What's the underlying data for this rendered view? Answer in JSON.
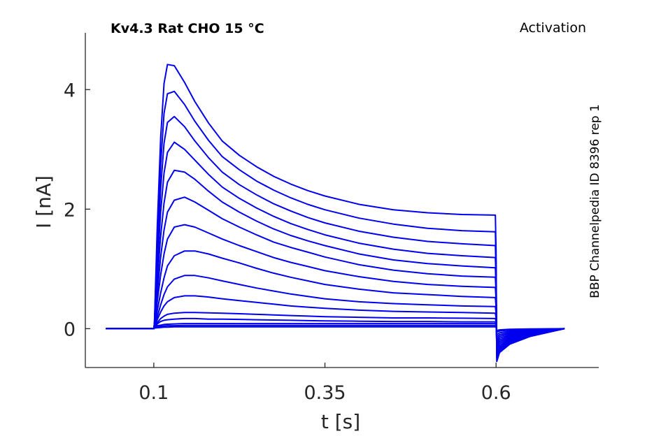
{
  "chart_data": {
    "type": "line",
    "title": "Kv4.3  Rat  CHO  15 °C",
    "right_title": "Activation",
    "side_label": "BBP Channelpedia ID 8396 rep 1",
    "xlabel": "t [s]",
    "ylabel": "I [nA]",
    "xlim": [
      0.0,
      0.75
    ],
    "ylim": [
      -0.65,
      4.95
    ],
    "xticks": [
      0.1,
      0.35,
      0.6
    ],
    "xtick_labels": [
      "0.1",
      "0.35",
      "0.6"
    ],
    "yticks": [
      0,
      2,
      4
    ],
    "ytick_labels": [
      "0",
      "2",
      "4"
    ],
    "grid": false,
    "line_color": "#0000ee",
    "x": [
      0.03,
      0.1,
      0.101,
      0.105,
      0.11,
      0.115,
      0.12,
      0.13,
      0.145,
      0.16,
      0.18,
      0.2,
      0.225,
      0.25,
      0.275,
      0.3,
      0.325,
      0.35,
      0.4,
      0.45,
      0.5,
      0.55,
      0.599,
      0.6,
      0.601,
      0.605,
      0.62,
      0.65,
      0.7
    ],
    "series": [
      {
        "values": [
          0.0,
          0.0,
          0.01,
          0.015,
          0.02,
          0.025,
          0.025,
          0.03,
          0.03,
          0.03,
          0.03,
          0.03,
          0.03,
          0.03,
          0.03,
          0.03,
          0.03,
          0.03,
          0.03,
          0.03,
          0.03,
          0.03,
          0.03,
          0.02,
          -0.03,
          -0.02,
          -0.01,
          -0.005,
          0.0
        ]
      },
      {
        "values": [
          0.0,
          0.0,
          0.02,
          0.03,
          0.04,
          0.045,
          0.05,
          0.05,
          0.055,
          0.055,
          0.055,
          0.055,
          0.055,
          0.055,
          0.055,
          0.055,
          0.055,
          0.055,
          0.055,
          0.055,
          0.055,
          0.055,
          0.055,
          0.04,
          -0.06,
          -0.04,
          -0.02,
          -0.01,
          0.0
        ]
      },
      {
        "values": [
          0.0,
          0.0,
          0.03,
          0.05,
          0.06,
          0.07,
          0.075,
          0.08,
          0.085,
          0.085,
          0.085,
          0.085,
          0.085,
          0.085,
          0.085,
          0.085,
          0.085,
          0.085,
          0.085,
          0.085,
          0.085,
          0.085,
          0.085,
          0.06,
          -0.1,
          -0.07,
          -0.04,
          -0.02,
          0.0
        ]
      },
      {
        "values": [
          0.0,
          0.0,
          0.03,
          0.08,
          0.12,
          0.14,
          0.15,
          0.16,
          0.17,
          0.17,
          0.16,
          0.16,
          0.155,
          0.15,
          0.145,
          0.14,
          0.135,
          0.13,
          0.125,
          0.12,
          0.12,
          0.115,
          0.115,
          0.08,
          -0.14,
          -0.1,
          -0.06,
          -0.03,
          0.0
        ]
      },
      {
        "values": [
          0.0,
          0.0,
          0.03,
          0.1,
          0.17,
          0.21,
          0.24,
          0.26,
          0.27,
          0.27,
          0.265,
          0.26,
          0.25,
          0.24,
          0.23,
          0.22,
          0.21,
          0.2,
          0.19,
          0.18,
          0.18,
          0.175,
          0.17,
          0.12,
          -0.18,
          -0.13,
          -0.08,
          -0.04,
          0.0
        ]
      },
      {
        "values": [
          0.0,
          0.0,
          0.03,
          0.15,
          0.28,
          0.38,
          0.45,
          0.52,
          0.55,
          0.55,
          0.53,
          0.5,
          0.47,
          0.44,
          0.41,
          0.38,
          0.36,
          0.34,
          0.31,
          0.29,
          0.28,
          0.27,
          0.26,
          0.18,
          -0.22,
          -0.16,
          -0.1,
          -0.05,
          0.0
        ]
      },
      {
        "values": [
          0.0,
          0.0,
          0.03,
          0.2,
          0.4,
          0.57,
          0.7,
          0.83,
          0.89,
          0.89,
          0.85,
          0.8,
          0.74,
          0.68,
          0.63,
          0.58,
          0.54,
          0.5,
          0.45,
          0.42,
          0.4,
          0.38,
          0.37,
          0.26,
          -0.26,
          -0.19,
          -0.12,
          -0.06,
          0.0
        ]
      },
      {
        "values": [
          0.0,
          0.0,
          0.04,
          0.3,
          0.6,
          0.85,
          1.05,
          1.22,
          1.3,
          1.3,
          1.25,
          1.18,
          1.1,
          1.01,
          0.93,
          0.86,
          0.8,
          0.74,
          0.66,
          0.6,
          0.57,
          0.54,
          0.52,
          0.36,
          -0.3,
          -0.22,
          -0.14,
          -0.07,
          0.0
        ]
      },
      {
        "values": [
          0.0,
          0.0,
          0.05,
          0.45,
          0.9,
          1.25,
          1.5,
          1.7,
          1.74,
          1.7,
          1.6,
          1.5,
          1.39,
          1.29,
          1.19,
          1.11,
          1.04,
          0.97,
          0.87,
          0.79,
          0.74,
          0.71,
          0.69,
          0.48,
          -0.34,
          -0.25,
          -0.16,
          -0.08,
          0.0
        ]
      },
      {
        "values": [
          0.0,
          0.0,
          0.06,
          0.6,
          1.2,
          1.65,
          1.95,
          2.15,
          2.2,
          2.12,
          1.98,
          1.84,
          1.7,
          1.57,
          1.45,
          1.36,
          1.28,
          1.2,
          1.07,
          0.98,
          0.92,
          0.88,
          0.86,
          0.6,
          -0.38,
          -0.28,
          -0.18,
          -0.09,
          0.0
        ]
      },
      {
        "values": [
          0.0,
          0.0,
          0.07,
          0.8,
          1.55,
          2.1,
          2.45,
          2.65,
          2.62,
          2.5,
          2.3,
          2.12,
          1.95,
          1.8,
          1.67,
          1.56,
          1.47,
          1.39,
          1.25,
          1.15,
          1.09,
          1.05,
          1.02,
          0.72,
          -0.42,
          -0.31,
          -0.2,
          -0.1,
          0.0
        ]
      },
      {
        "values": [
          0.0,
          0.0,
          0.08,
          1.0,
          1.95,
          2.6,
          2.95,
          3.12,
          3.0,
          2.82,
          2.58,
          2.37,
          2.18,
          2.02,
          1.88,
          1.76,
          1.66,
          1.57,
          1.43,
          1.33,
          1.26,
          1.22,
          1.19,
          0.84,
          -0.46,
          -0.34,
          -0.22,
          -0.11,
          0.0
        ]
      },
      {
        "values": [
          0.0,
          0.0,
          0.09,
          1.2,
          2.35,
          3.1,
          3.45,
          3.55,
          3.38,
          3.14,
          2.86,
          2.62,
          2.41,
          2.24,
          2.09,
          1.97,
          1.86,
          1.77,
          1.63,
          1.53,
          1.46,
          1.42,
          1.39,
          0.98,
          -0.5,
          -0.37,
          -0.24,
          -0.12,
          0.0
        ]
      },
      {
        "values": [
          0.0,
          0.0,
          0.1,
          1.45,
          2.75,
          3.6,
          3.93,
          3.97,
          3.75,
          3.47,
          3.15,
          2.88,
          2.66,
          2.47,
          2.32,
          2.19,
          2.08,
          1.99,
          1.85,
          1.75,
          1.68,
          1.64,
          1.62,
          1.12,
          -0.55,
          -0.4,
          -0.26,
          -0.13,
          0.0
        ]
      },
      {
        "values": [
          0.0,
          0.0,
          0.1,
          1.7,
          3.2,
          4.1,
          4.42,
          4.4,
          4.12,
          3.8,
          3.44,
          3.14,
          2.9,
          2.71,
          2.55,
          2.42,
          2.31,
          2.22,
          2.08,
          1.99,
          1.94,
          1.91,
          1.9,
          1.3,
          -0.42,
          -0.32,
          -0.2,
          -0.1,
          0.0
        ]
      }
    ]
  }
}
